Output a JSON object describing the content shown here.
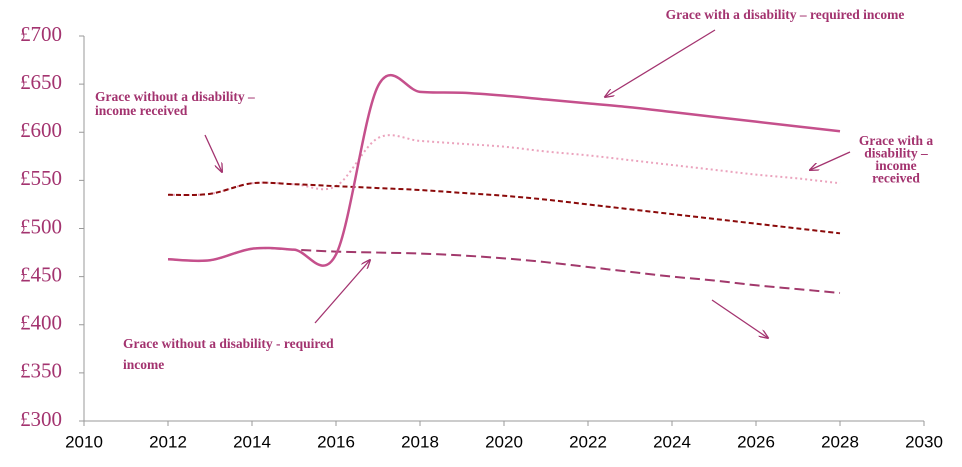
{
  "chart_data": {
    "type": "line",
    "x": [
      2012,
      2013,
      2014,
      2015,
      2016,
      2017,
      2018,
      2019,
      2020,
      2021,
      2022,
      2023,
      2024,
      2025,
      2026,
      2027,
      2028
    ],
    "series": [
      {
        "name": "Grace with a disability – required income",
        "color": "#c5508c",
        "style": "solid",
        "values": [
          468,
          467,
          479,
          478,
          473,
          648,
          642,
          641,
          638,
          634,
          630,
          626,
          621,
          616,
          611,
          606,
          601
        ]
      },
      {
        "name": "Grace with a disability – income received",
        "color": "#eba3bd",
        "style": "dotted",
        "values": [
          535,
          536,
          547,
          546,
          544,
          594,
          591,
          588,
          585,
          580,
          576,
          571,
          566,
          561,
          556,
          552,
          547
        ]
      },
      {
        "name": "Grace without a disability – income received",
        "color": "#8b0a0a",
        "style": "dashed",
        "values": [
          535,
          536,
          547,
          546,
          544,
          542,
          540,
          537,
          534,
          530,
          525,
          520,
          515,
          510,
          505,
          500,
          495
        ]
      },
      {
        "name": "Grace without a disability - required income",
        "color": "#a2396c",
        "style": "longdash",
        "values": [
          468,
          467,
          479,
          478,
          476,
          475,
          474,
          472,
          469,
          465,
          460,
          455,
          450,
          446,
          441,
          437,
          433
        ]
      }
    ],
    "annotations": [
      {
        "lines": [
          "Grace with a disability – required income"
        ]
      },
      {
        "lines": [
          "Grace without a disability –",
          "income received"
        ]
      },
      {
        "lines": [
          "Grace with a",
          "disability –",
          "income",
          "received"
        ]
      },
      {
        "lines": [
          "Grace without a disability - required",
          "income"
        ]
      }
    ],
    "xlim": [
      2010,
      2030
    ],
    "xticks": [
      2010,
      2012,
      2014,
      2016,
      2018,
      2020,
      2022,
      2024,
      2026,
      2028,
      2030
    ],
    "ylim": [
      300,
      700
    ],
    "yticks": [
      {
        "value": 300,
        "label": "£300"
      },
      {
        "value": 350,
        "label": "£350"
      },
      {
        "value": 400,
        "label": "£400"
      },
      {
        "value": 450,
        "label": "£450"
      },
      {
        "value": 500,
        "label": "£500"
      },
      {
        "value": 550,
        "label": "£550"
      },
      {
        "value": 600,
        "label": "£600"
      },
      {
        "value": 650,
        "label": "£650"
      },
      {
        "value": 700,
        "label": "£700"
      }
    ],
    "grid": false
  }
}
